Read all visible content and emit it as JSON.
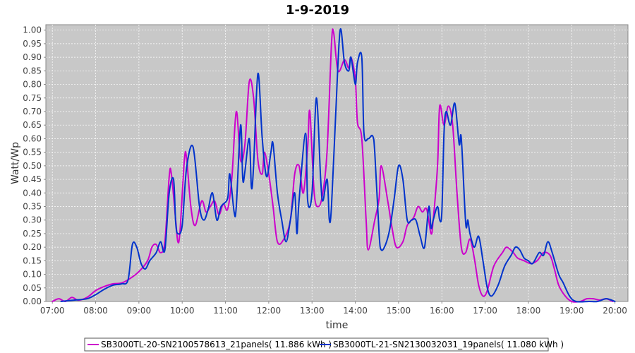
{
  "chart_data": {
    "type": "line",
    "title": "1-9-2019",
    "xlabel": "time",
    "ylabel": "Watt/Wp",
    "xlim": [
      6.85,
      20.3
    ],
    "ylim": [
      0,
      1.02
    ],
    "x_ticks": [
      {
        "value": 7,
        "label": "07:00"
      },
      {
        "value": 8,
        "label": "08:00"
      },
      {
        "value": 9,
        "label": "09:00"
      },
      {
        "value": 10,
        "label": "10:00"
      },
      {
        "value": 11,
        "label": "11:00"
      },
      {
        "value": 12,
        "label": "12:00"
      },
      {
        "value": 13,
        "label": "13:00"
      },
      {
        "value": 14,
        "label": "14:00"
      },
      {
        "value": 15,
        "label": "15:00"
      },
      {
        "value": 16,
        "label": "16:00"
      },
      {
        "value": 17,
        "label": "17:00"
      },
      {
        "value": 18,
        "label": "18:00"
      },
      {
        "value": 19,
        "label": "19:00"
      },
      {
        "value": 20,
        "label": "20:00"
      }
    ],
    "y_ticks": [
      {
        "value": 0.0,
        "label": "0.00"
      },
      {
        "value": 0.05,
        "label": "0.05"
      },
      {
        "value": 0.1,
        "label": "0.10"
      },
      {
        "value": 0.15,
        "label": "0.15"
      },
      {
        "value": 0.2,
        "label": "0.20"
      },
      {
        "value": 0.25,
        "label": "0.25"
      },
      {
        "value": 0.3,
        "label": "0.30"
      },
      {
        "value": 0.35,
        "label": "0.35"
      },
      {
        "value": 0.4,
        "label": "0.40"
      },
      {
        "value": 0.45,
        "label": "0.45"
      },
      {
        "value": 0.5,
        "label": "0.50"
      },
      {
        "value": 0.55,
        "label": "0.55"
      },
      {
        "value": 0.6,
        "label": "0.60"
      },
      {
        "value": 0.65,
        "label": "0.65"
      },
      {
        "value": 0.7,
        "label": "0.70"
      },
      {
        "value": 0.75,
        "label": "0.75"
      },
      {
        "value": 0.8,
        "label": "0.80"
      },
      {
        "value": 0.85,
        "label": "0.85"
      },
      {
        "value": 0.9,
        "label": "0.90"
      },
      {
        "value": 0.95,
        "label": "0.95"
      },
      {
        "value": 1.0,
        "label": "1.00"
      }
    ],
    "grid": true,
    "legend_position": "bottom",
    "plot_background": "#c8c8c8",
    "series": [
      {
        "name": "SB3000TL-20-SN2100578613_21panels( 11.886 kWh )",
        "color": "#cc00cc",
        "points": [
          [
            7.0,
            0.0
          ],
          [
            7.15,
            0.01
          ],
          [
            7.3,
            0.0
          ],
          [
            7.45,
            0.015
          ],
          [
            7.6,
            0.005
          ],
          [
            7.8,
            0.015
          ],
          [
            8.0,
            0.04
          ],
          [
            8.2,
            0.055
          ],
          [
            8.4,
            0.065
          ],
          [
            8.6,
            0.068
          ],
          [
            8.8,
            0.085
          ],
          [
            9.0,
            0.11
          ],
          [
            9.2,
            0.15
          ],
          [
            9.3,
            0.2
          ],
          [
            9.4,
            0.21
          ],
          [
            9.5,
            0.18
          ],
          [
            9.6,
            0.22
          ],
          [
            9.7,
            0.46
          ],
          [
            9.75,
            0.47
          ],
          [
            9.85,
            0.3
          ],
          [
            9.9,
            0.22
          ],
          [
            9.95,
            0.26
          ],
          [
            10.05,
            0.52
          ],
          [
            10.1,
            0.53
          ],
          [
            10.2,
            0.35
          ],
          [
            10.3,
            0.28
          ],
          [
            10.45,
            0.37
          ],
          [
            10.55,
            0.33
          ],
          [
            10.65,
            0.35
          ],
          [
            10.75,
            0.37
          ],
          [
            10.85,
            0.32
          ],
          [
            10.95,
            0.36
          ],
          [
            11.05,
            0.34
          ],
          [
            11.15,
            0.46
          ],
          [
            11.25,
            0.7
          ],
          [
            11.35,
            0.52
          ],
          [
            11.45,
            0.58
          ],
          [
            11.55,
            0.81
          ],
          [
            11.65,
            0.75
          ],
          [
            11.75,
            0.52
          ],
          [
            11.85,
            0.47
          ],
          [
            11.9,
            0.55
          ],
          [
            12.0,
            0.47
          ],
          [
            12.1,
            0.35
          ],
          [
            12.2,
            0.22
          ],
          [
            12.35,
            0.23
          ],
          [
            12.5,
            0.3
          ],
          [
            12.6,
            0.47
          ],
          [
            12.7,
            0.5
          ],
          [
            12.8,
            0.4
          ],
          [
            12.9,
            0.57
          ],
          [
            12.95,
            0.7
          ],
          [
            13.05,
            0.4
          ],
          [
            13.15,
            0.35
          ],
          [
            13.25,
            0.4
          ],
          [
            13.35,
            0.56
          ],
          [
            13.45,
            0.95
          ],
          [
            13.5,
            0.99
          ],
          [
            13.6,
            0.85
          ],
          [
            13.75,
            0.89
          ],
          [
            13.85,
            0.86
          ],
          [
            13.9,
            0.9
          ],
          [
            14.0,
            0.82
          ],
          [
            14.05,
            0.66
          ],
          [
            14.15,
            0.6
          ],
          [
            14.25,
            0.3
          ],
          [
            14.3,
            0.19
          ],
          [
            14.45,
            0.3
          ],
          [
            14.55,
            0.38
          ],
          [
            14.6,
            0.5
          ],
          [
            14.75,
            0.37
          ],
          [
            14.85,
            0.27
          ],
          [
            14.95,
            0.2
          ],
          [
            15.1,
            0.22
          ],
          [
            15.2,
            0.28
          ],
          [
            15.35,
            0.31
          ],
          [
            15.45,
            0.35
          ],
          [
            15.55,
            0.33
          ],
          [
            15.65,
            0.34
          ],
          [
            15.75,
            0.25
          ],
          [
            15.8,
            0.3
          ],
          [
            15.9,
            0.5
          ],
          [
            15.95,
            0.72
          ],
          [
            16.05,
            0.65
          ],
          [
            16.15,
            0.72
          ],
          [
            16.25,
            0.65
          ],
          [
            16.35,
            0.4
          ],
          [
            16.45,
            0.2
          ],
          [
            16.55,
            0.18
          ],
          [
            16.65,
            0.23
          ],
          [
            16.75,
            0.16
          ],
          [
            16.85,
            0.06
          ],
          [
            16.95,
            0.02
          ],
          [
            17.05,
            0.04
          ],
          [
            17.2,
            0.13
          ],
          [
            17.4,
            0.18
          ],
          [
            17.5,
            0.2
          ],
          [
            17.65,
            0.18
          ],
          [
            17.75,
            0.16
          ],
          [
            17.9,
            0.15
          ],
          [
            18.05,
            0.14
          ],
          [
            18.2,
            0.15
          ],
          [
            18.35,
            0.18
          ],
          [
            18.5,
            0.17
          ],
          [
            18.6,
            0.12
          ],
          [
            18.7,
            0.06
          ],
          [
            18.85,
            0.02
          ],
          [
            19.0,
            0.0
          ],
          [
            19.2,
            0.0
          ],
          [
            19.35,
            0.01
          ],
          [
            19.5,
            0.01
          ],
          [
            19.65,
            0.005
          ],
          [
            19.8,
            0.01
          ],
          [
            19.95,
            0.0
          ]
        ]
      },
      {
        "name": "SB3000TL-21-SN2130032031_19panels( 11.080 kWh )",
        "color": "#0033cc",
        "points": [
          [
            7.2,
            0.0
          ],
          [
            7.5,
            0.005
          ],
          [
            7.8,
            0.01
          ],
          [
            8.0,
            0.025
          ],
          [
            8.2,
            0.045
          ],
          [
            8.4,
            0.06
          ],
          [
            8.6,
            0.065
          ],
          [
            8.75,
            0.08
          ],
          [
            8.85,
            0.21
          ],
          [
            8.95,
            0.2
          ],
          [
            9.05,
            0.14
          ],
          [
            9.15,
            0.12
          ],
          [
            9.25,
            0.15
          ],
          [
            9.4,
            0.18
          ],
          [
            9.5,
            0.22
          ],
          [
            9.6,
            0.19
          ],
          [
            9.7,
            0.4
          ],
          [
            9.8,
            0.45
          ],
          [
            9.85,
            0.29
          ],
          [
            9.9,
            0.25
          ],
          [
            10.0,
            0.28
          ],
          [
            10.1,
            0.49
          ],
          [
            10.25,
            0.57
          ],
          [
            10.4,
            0.35
          ],
          [
            10.5,
            0.3
          ],
          [
            10.6,
            0.34
          ],
          [
            10.7,
            0.4
          ],
          [
            10.8,
            0.3
          ],
          [
            10.9,
            0.35
          ],
          [
            11.05,
            0.38
          ],
          [
            11.1,
            0.47
          ],
          [
            11.2,
            0.33
          ],
          [
            11.25,
            0.35
          ],
          [
            11.35,
            0.65
          ],
          [
            11.4,
            0.45
          ],
          [
            11.45,
            0.48
          ],
          [
            11.55,
            0.6
          ],
          [
            11.6,
            0.42
          ],
          [
            11.65,
            0.5
          ],
          [
            11.75,
            0.84
          ],
          [
            11.85,
            0.6
          ],
          [
            11.95,
            0.46
          ],
          [
            12.05,
            0.55
          ],
          [
            12.1,
            0.58
          ],
          [
            12.2,
            0.4
          ],
          [
            12.3,
            0.3
          ],
          [
            12.4,
            0.22
          ],
          [
            12.5,
            0.3
          ],
          [
            12.6,
            0.4
          ],
          [
            12.65,
            0.25
          ],
          [
            12.7,
            0.37
          ],
          [
            12.85,
            0.62
          ],
          [
            12.9,
            0.37
          ],
          [
            13.0,
            0.4
          ],
          [
            13.1,
            0.75
          ],
          [
            13.2,
            0.45
          ],
          [
            13.25,
            0.37
          ],
          [
            13.35,
            0.45
          ],
          [
            13.4,
            0.3
          ],
          [
            13.45,
            0.35
          ],
          [
            13.55,
            0.7
          ],
          [
            13.65,
            1.0
          ],
          [
            13.75,
            0.88
          ],
          [
            13.85,
            0.85
          ],
          [
            13.9,
            0.9
          ],
          [
            14.0,
            0.8
          ],
          [
            14.05,
            0.88
          ],
          [
            14.15,
            0.9
          ],
          [
            14.2,
            0.62
          ],
          [
            14.3,
            0.6
          ],
          [
            14.4,
            0.61
          ],
          [
            14.45,
            0.55
          ],
          [
            14.55,
            0.25
          ],
          [
            14.6,
            0.19
          ],
          [
            14.7,
            0.21
          ],
          [
            14.8,
            0.27
          ],
          [
            14.9,
            0.38
          ],
          [
            15.0,
            0.5
          ],
          [
            15.1,
            0.45
          ],
          [
            15.2,
            0.3
          ],
          [
            15.3,
            0.3
          ],
          [
            15.4,
            0.3
          ],
          [
            15.5,
            0.24
          ],
          [
            15.6,
            0.2
          ],
          [
            15.7,
            0.35
          ],
          [
            15.75,
            0.27
          ],
          [
            15.8,
            0.3
          ],
          [
            15.9,
            0.35
          ],
          [
            15.95,
            0.3
          ],
          [
            16.0,
            0.33
          ],
          [
            16.05,
            0.62
          ],
          [
            16.1,
            0.7
          ],
          [
            16.2,
            0.65
          ],
          [
            16.3,
            0.73
          ],
          [
            16.4,
            0.58
          ],
          [
            16.45,
            0.6
          ],
          [
            16.55,
            0.29
          ],
          [
            16.6,
            0.3
          ],
          [
            16.65,
            0.25
          ],
          [
            16.75,
            0.2
          ],
          [
            16.85,
            0.24
          ],
          [
            16.95,
            0.15
          ],
          [
            17.05,
            0.05
          ],
          [
            17.15,
            0.02
          ],
          [
            17.3,
            0.06
          ],
          [
            17.45,
            0.13
          ],
          [
            17.6,
            0.17
          ],
          [
            17.7,
            0.2
          ],
          [
            17.8,
            0.19
          ],
          [
            17.9,
            0.16
          ],
          [
            18.0,
            0.15
          ],
          [
            18.1,
            0.14
          ],
          [
            18.25,
            0.18
          ],
          [
            18.35,
            0.17
          ],
          [
            18.45,
            0.22
          ],
          [
            18.55,
            0.18
          ],
          [
            18.7,
            0.1
          ],
          [
            18.8,
            0.07
          ],
          [
            18.95,
            0.02
          ],
          [
            19.1,
            0.0
          ],
          [
            19.4,
            0.0
          ],
          [
            19.6,
            0.0
          ],
          [
            19.8,
            0.01
          ],
          [
            20.0,
            0.0
          ]
        ]
      }
    ]
  }
}
